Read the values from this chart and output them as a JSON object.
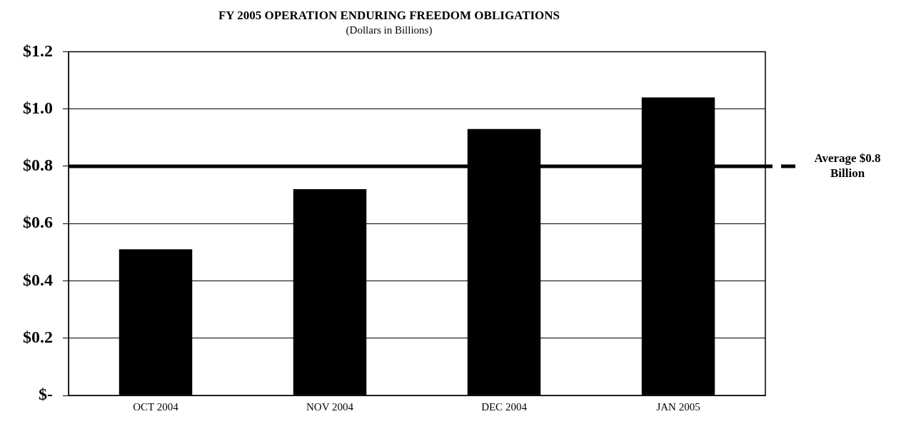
{
  "chart_data": {
    "type": "bar",
    "title": "FY 2005 OPERATION ENDURING FREEDOM OBLIGATIONS",
    "subtitle": "(Dollars in Billions)",
    "categories": [
      "OCT 2004",
      "NOV 2004",
      "DEC 2004",
      "JAN 2005"
    ],
    "values": [
      0.51,
      0.72,
      0.93,
      1.04
    ],
    "color": "#000000",
    "ylim": [
      0,
      1.2
    ],
    "yticks": [
      {
        "value": 0,
        "label": "$-"
      },
      {
        "value": 0.2,
        "label": "$0.2"
      },
      {
        "value": 0.4,
        "label": "$0.4"
      },
      {
        "value": 0.6,
        "label": "$0.6"
      },
      {
        "value": 0.8,
        "label": "$0.8"
      },
      {
        "value": 1.0,
        "label": "$1.0"
      },
      {
        "value": 1.2,
        "label": "$1.2"
      }
    ],
    "grid": "y",
    "ref_lines": [
      {
        "axis": "y",
        "value": 0.8,
        "label": "Average $0.8 Billion",
        "color": "#000000"
      }
    ]
  }
}
